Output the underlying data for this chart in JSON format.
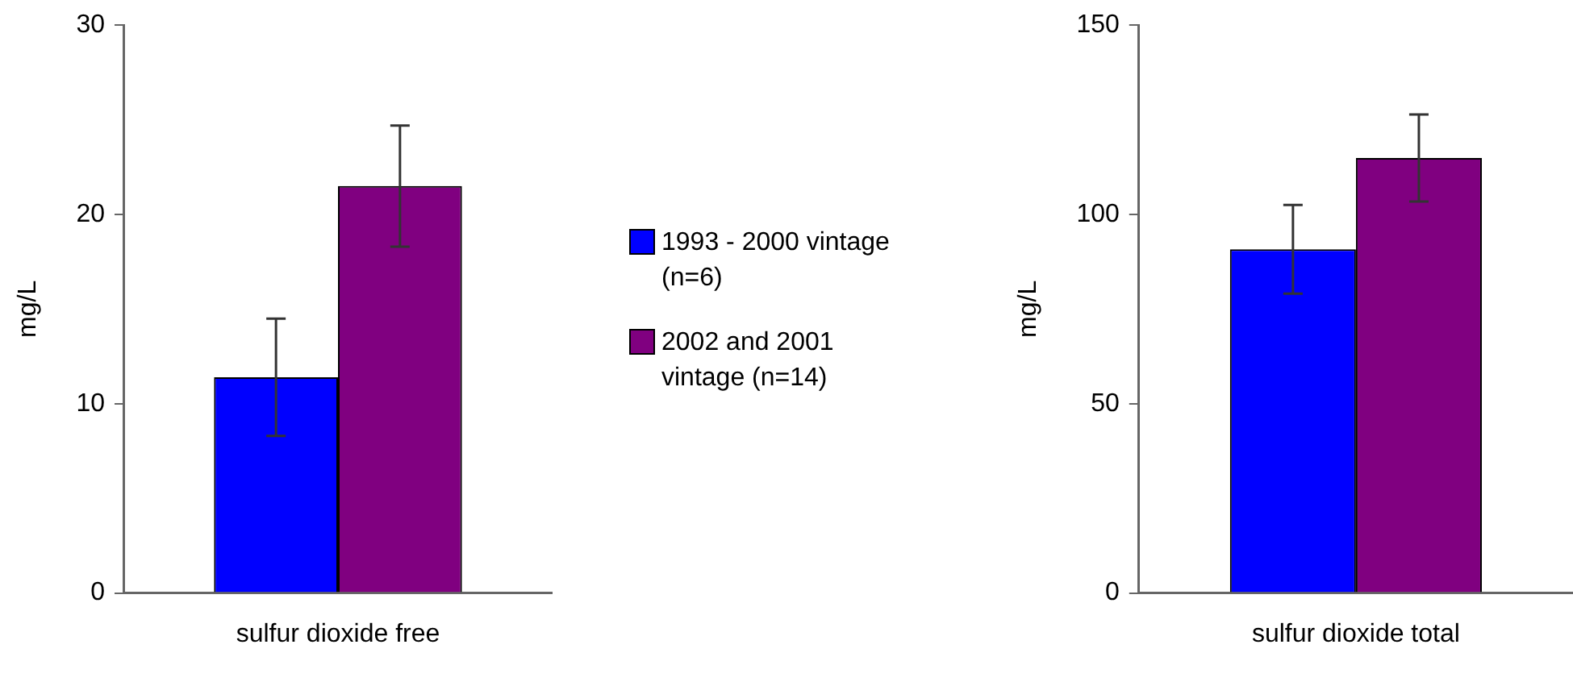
{
  "chart_data": [
    {
      "type": "bar",
      "categories": [
        "sulfur dioxide free"
      ],
      "ylabel": "mg/L",
      "ylim": [
        0,
        30
      ],
      "yticks": [
        0,
        10,
        20,
        30
      ],
      "grid": false,
      "legend": "right",
      "series": [
        {
          "name": "1993 - 2000 vintage (n=6)",
          "color": "#0000ff",
          "values": [
            11.4
          ],
          "errors": [
            3.1
          ]
        },
        {
          "name": "2002 and 2001 vintage (n=14)",
          "color": "#800080",
          "values": [
            21.5
          ],
          "errors": [
            3.2
          ]
        }
      ]
    },
    {
      "type": "bar",
      "categories": [
        "sulfur dioxide total"
      ],
      "ylabel": "mg/L",
      "ylim": [
        0,
        150
      ],
      "yticks": [
        0,
        50,
        100,
        150
      ],
      "grid": false,
      "series": [
        {
          "color": "#0000ff",
          "values": [
            90.8
          ],
          "errors": [
            11.7
          ]
        },
        {
          "color": "#800080",
          "values": [
            114.9
          ],
          "errors": [
            11.5
          ]
        }
      ]
    }
  ]
}
